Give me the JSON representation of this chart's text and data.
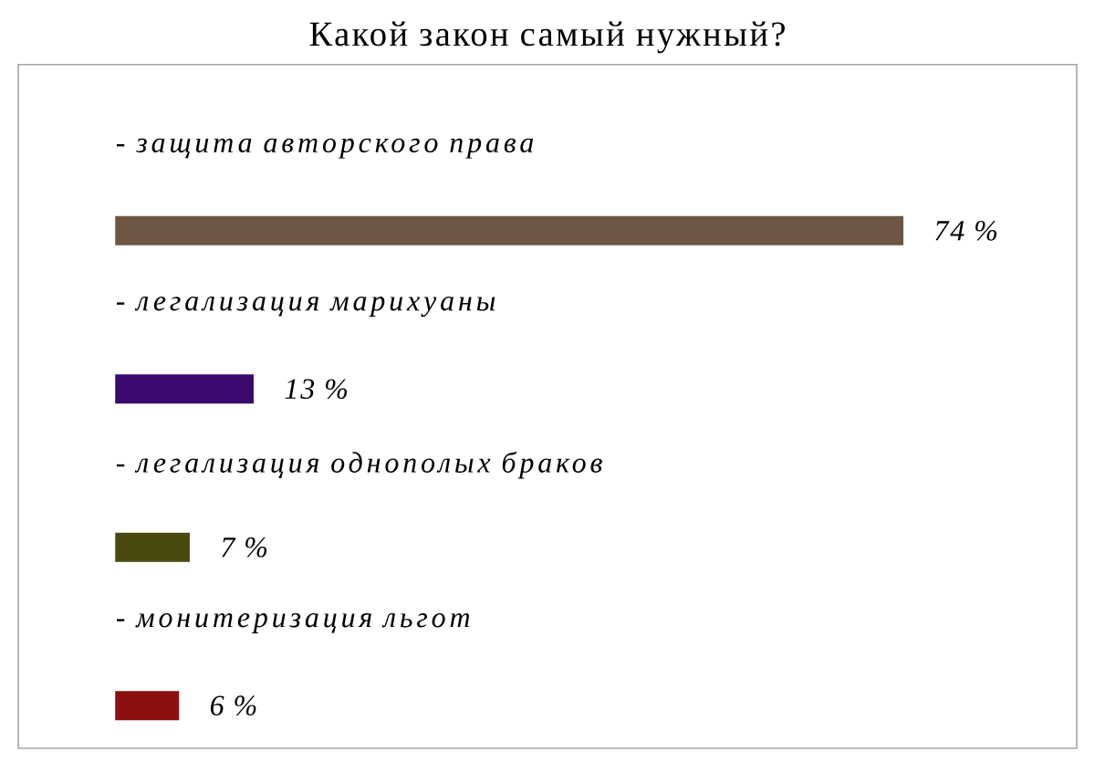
{
  "chart_data": {
    "type": "bar",
    "orientation": "horizontal",
    "title": "Какой закон самый нужный?",
    "categories": [
      "- защита авторского права",
      "- легализация марихуаны",
      "- легализация однополых браков",
      "- монитеризация льгот"
    ],
    "values": [
      74,
      13,
      7,
      6
    ],
    "colors": [
      "#6e5644",
      "#3a0a6e",
      "#4a4a10",
      "#8b1010"
    ],
    "value_labels": [
      "74 %",
      "13 %",
      "7 %",
      "6 %"
    ]
  }
}
